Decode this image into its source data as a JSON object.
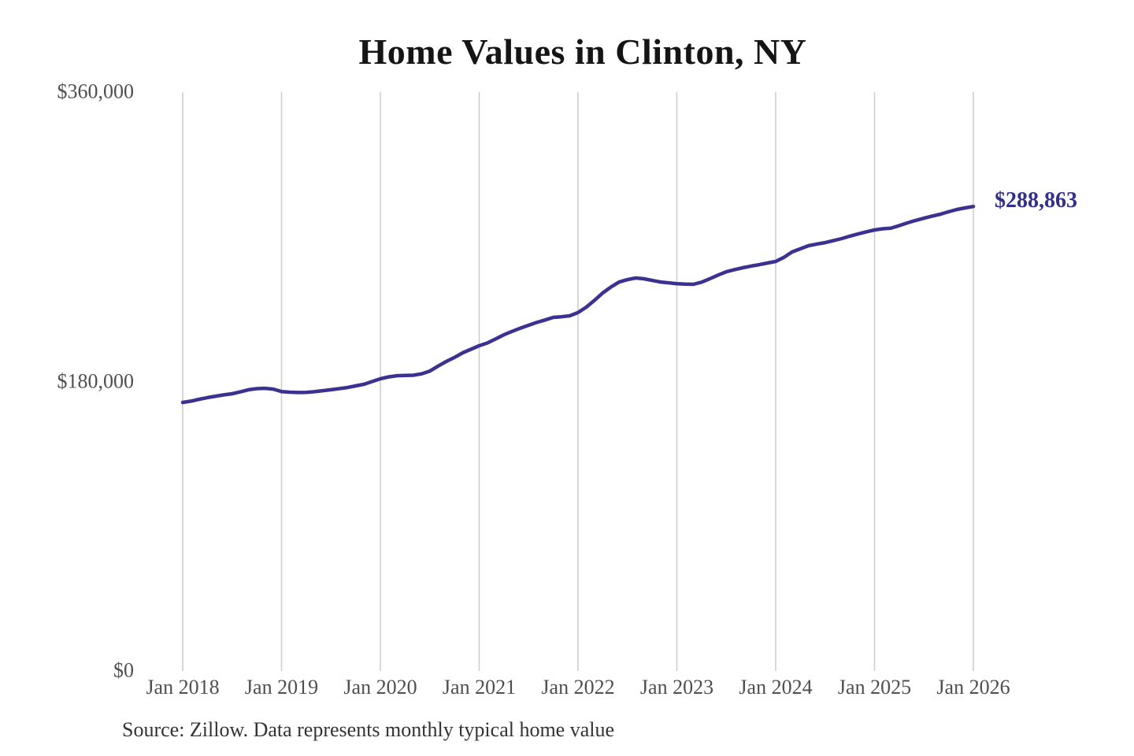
{
  "footer": {
    "source": "Source: Zillow. Data represents monthly typical home value"
  },
  "chart_data": {
    "type": "line",
    "title": "Home Values in Clinton, NY",
    "series_name": "Typical home value (monthly)",
    "legend": "none",
    "grid": "vertical-only",
    "ylim": [
      0,
      360000
    ],
    "y_ticks": [
      {
        "value": 360000,
        "label": "$360,000"
      },
      {
        "value": 180000,
        "label": "$180,000"
      },
      {
        "value": 0,
        "label": "$0"
      }
    ],
    "x_tick_labels": [
      "Jan 2018",
      "Jan 2019",
      "Jan 2020",
      "Jan 2021",
      "Jan 2022",
      "Jan 2023",
      "Jan 2024",
      "Jan 2025",
      "Jan 2026"
    ],
    "end_label": "$288,863",
    "end_value": 288863,
    "line_color": "#3a3190",
    "label_color": "#332f8c",
    "grid_color": "#cccccc",
    "x": [
      "2018-01",
      "2018-02",
      "2018-03",
      "2018-04",
      "2018-05",
      "2018-06",
      "2018-07",
      "2018-08",
      "2018-09",
      "2018-10",
      "2018-11",
      "2018-12",
      "2019-01",
      "2019-02",
      "2019-03",
      "2019-04",
      "2019-05",
      "2019-06",
      "2019-07",
      "2019-08",
      "2019-09",
      "2019-10",
      "2019-11",
      "2019-12",
      "2020-01",
      "2020-02",
      "2020-03",
      "2020-04",
      "2020-05",
      "2020-06",
      "2020-07",
      "2020-08",
      "2020-09",
      "2020-10",
      "2020-11",
      "2020-12",
      "2021-01",
      "2021-02",
      "2021-03",
      "2021-04",
      "2021-05",
      "2021-06",
      "2021-07",
      "2021-08",
      "2021-09",
      "2021-10",
      "2021-11",
      "2021-12",
      "2022-01",
      "2022-02",
      "2022-03",
      "2022-04",
      "2022-05",
      "2022-06",
      "2022-07",
      "2022-08",
      "2022-09",
      "2022-10",
      "2022-11",
      "2022-12",
      "2023-01",
      "2023-02",
      "2023-03",
      "2023-04",
      "2023-05",
      "2023-06",
      "2023-07",
      "2023-08",
      "2023-09",
      "2023-10",
      "2023-11",
      "2023-12",
      "2024-01",
      "2024-02",
      "2024-03",
      "2024-04",
      "2024-05",
      "2024-06",
      "2024-07",
      "2024-08",
      "2024-09",
      "2024-10",
      "2024-11",
      "2024-12",
      "2025-01",
      "2025-02",
      "2025-03",
      "2025-04",
      "2025-05",
      "2025-06",
      "2025-07",
      "2025-08",
      "2025-09",
      "2025-10",
      "2025-11",
      "2025-12",
      "2026-01"
    ],
    "values": [
      167000,
      167800,
      169000,
      170000,
      170900,
      171700,
      172400,
      173600,
      174900,
      175600,
      175800,
      175300,
      173800,
      173400,
      173200,
      173300,
      173700,
      174300,
      174900,
      175600,
      176300,
      177300,
      178300,
      180000,
      181700,
      182900,
      183600,
      183800,
      183900,
      184800,
      186500,
      189600,
      192500,
      195000,
      197900,
      200100,
      202300,
      204000,
      206500,
      209100,
      211200,
      213200,
      215000,
      216800,
      218300,
      219900,
      220300,
      220900,
      222900,
      226300,
      230500,
      235100,
      238800,
      241900,
      243400,
      244400,
      243900,
      242900,
      241900,
      241400,
      240900,
      240600,
      240500,
      241800,
      243900,
      246200,
      248300,
      249600,
      250800,
      251800,
      252700,
      253700,
      254700,
      257300,
      260600,
      262600,
      264500,
      265500,
      266400,
      267600,
      268900,
      270400,
      271800,
      273100,
      274300,
      275000,
      275400,
      277000,
      278700,
      280200,
      281600,
      282900,
      284100,
      285600,
      287000,
      288000,
      288863
    ]
  }
}
